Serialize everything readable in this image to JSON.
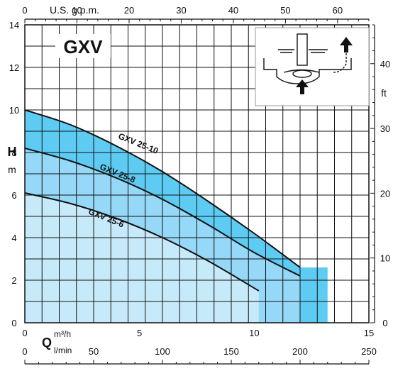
{
  "chart_data": {
    "type": "line",
    "title": "GXV",
    "y_left_label": "H",
    "y_left_unit": "m",
    "y_right_unit": "ft",
    "x_bottom_label": "Q",
    "x_bottom_unit_m3h": "m³/h",
    "x_bottom_unit_lmin": "l/min",
    "x_top_unit": "U.S. g.p.m.",
    "axes": {
      "q_m3h": {
        "range": [
          0,
          15
        ],
        "ticks": [
          0,
          5,
          10,
          15
        ]
      },
      "q_lmin": {
        "range": [
          0,
          250
        ],
        "ticks": [
          0,
          50,
          100,
          150,
          200,
          250
        ]
      },
      "q_usgpm": {
        "range": [
          0,
          66
        ],
        "ticks": [
          0,
          10,
          20,
          30,
          40,
          50,
          60
        ]
      },
      "h_m": {
        "range": [
          0,
          14
        ],
        "ticks": [
          0,
          2,
          4,
          6,
          8,
          10,
          12,
          14
        ]
      },
      "h_ft": {
        "range": [
          0,
          46
        ],
        "ticks": [
          0,
          10,
          20,
          30,
          40
        ]
      }
    },
    "grid": true,
    "series": [
      {
        "name": "GXV 25-10",
        "color": "#6dcff6",
        "points": [
          [
            0,
            10.0
          ],
          [
            2,
            9.3
          ],
          [
            4,
            8.3
          ],
          [
            6,
            7.1
          ],
          [
            8,
            5.7
          ],
          [
            10,
            4.2
          ],
          [
            12,
            2.6
          ],
          [
            13.2,
            2.6
          ],
          [
            13.2,
            0
          ]
        ],
        "curve": [
          [
            0,
            10.0
          ],
          [
            2,
            9.3
          ],
          [
            4,
            8.3
          ],
          [
            6,
            7.1
          ],
          [
            8,
            5.7
          ],
          [
            10,
            4.2
          ],
          [
            12,
            2.6
          ]
        ],
        "label_at": [
          4.9,
          8.3
        ]
      },
      {
        "name": "GXV 25-8",
        "color": "#9fdbf8",
        "points": [
          [
            0,
            8.2
          ],
          [
            2,
            7.6
          ],
          [
            4,
            6.8
          ],
          [
            6,
            5.8
          ],
          [
            8,
            4.6
          ],
          [
            10,
            3.3
          ],
          [
            12,
            2.2
          ]
        ],
        "curve": [
          [
            0,
            8.2
          ],
          [
            2,
            7.6
          ],
          [
            4,
            6.8
          ],
          [
            6,
            5.8
          ],
          [
            8,
            4.6
          ],
          [
            10,
            3.3
          ],
          [
            12,
            2.2
          ]
        ],
        "label_at": [
          4.0,
          6.9
        ]
      },
      {
        "name": "GXV 25-6",
        "color": "#c6e9fb",
        "points": [
          [
            0,
            6.1
          ],
          [
            2,
            5.6
          ],
          [
            4,
            4.9
          ],
          [
            6,
            4.0
          ],
          [
            8,
            2.9
          ],
          [
            10.2,
            1.5
          ]
        ],
        "curve": [
          [
            0,
            6.1
          ],
          [
            2,
            5.6
          ],
          [
            4,
            4.9
          ],
          [
            6,
            4.0
          ],
          [
            8,
            2.9
          ],
          [
            10.2,
            1.5
          ]
        ],
        "label_at": [
          3.5,
          4.8
        ]
      }
    ],
    "fills": [
      {
        "series": "GXV 25-10",
        "area_end_q": 13.2,
        "color": "#5ecbf3"
      },
      {
        "series": "GXV 25-8",
        "area_end_q": 12.0,
        "color": "#95d8f7"
      },
      {
        "series": "GXV 25-6",
        "area_end_q": 10.2,
        "color": "#c7eafb"
      }
    ],
    "inset_icon": "pump-cross-section-icon"
  }
}
